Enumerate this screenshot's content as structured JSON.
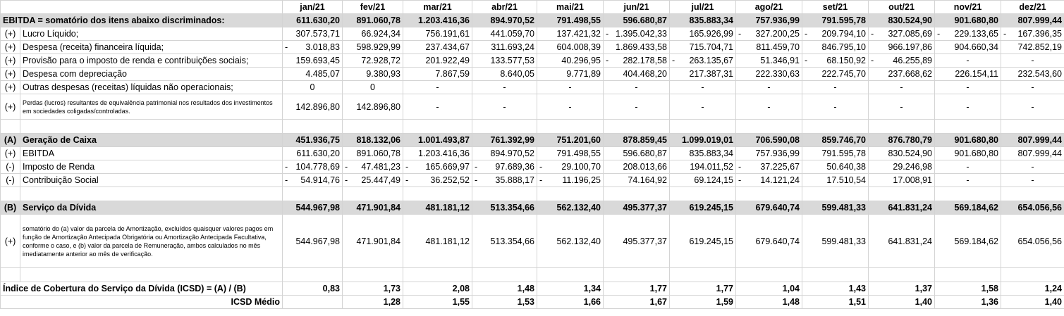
{
  "months": [
    "jan/21",
    "fev/21",
    "mar/21",
    "abr/21",
    "mai/21",
    "jun/21",
    "jul/21",
    "ago/21",
    "set/21",
    "out/21",
    "nov/21",
    "dez/21"
  ],
  "ebitda_header": {
    "label": "EBITDA = somatório dos itens abaixo discriminados:",
    "values": [
      "611.630,20",
      "891.060,78",
      "1.203.416,36",
      "894.970,52",
      "791.498,55",
      "596.680,87",
      "835.883,34",
      "757.936,99",
      "791.595,78",
      "830.524,90",
      "901.680,80",
      "807.999,44"
    ]
  },
  "ebitda_items": [
    {
      "sign": "(+)",
      "label": "Lucro Líquido;",
      "values": [
        "307.573,71",
        "66.924,34",
        "756.191,61",
        "441.059,70",
        "137.421,32",
        "-1.395.042,33",
        "165.926,99",
        "-327.200,25",
        "-209.794,10",
        "-327.085,69",
        "-229.133,65",
        "-167.396,35"
      ]
    },
    {
      "sign": "(+)",
      "label": "Despesa (receita) financeira líquida;",
      "values": [
        "-3.018,83",
        "598.929,99",
        "237.434,67",
        "311.693,24",
        "604.008,39",
        "1.869.433,58",
        "715.704,71",
        "811.459,70",
        "846.795,10",
        "966.197,86",
        "904.660,34",
        "742.852,19"
      ]
    },
    {
      "sign": "(+)",
      "label": "Provisão para o imposto de renda e contribuições sociais;",
      "values": [
        "159.693,45",
        "72.928,72",
        "201.922,49",
        "133.577,53",
        "40.296,95",
        "-282.178,58",
        "-263.135,67",
        "51.346,91",
        "-68.150,92",
        "-46.255,89",
        "-",
        "-"
      ]
    },
    {
      "sign": "(+)",
      "label": "Despesa com depreciação",
      "values": [
        "4.485,07",
        "9.380,93",
        "7.867,59",
        "8.640,05",
        "9.771,89",
        "404.468,20",
        "217.387,31",
        "222.330,63",
        "222.745,70",
        "237.668,62",
        "226.154,11",
        "232.543,60"
      ]
    },
    {
      "sign": "(+)",
      "label": "Outras despesas (receitas) líquidas não operacionais;",
      "values": [
        "0",
        "0",
        "-",
        "-",
        "-",
        "-",
        "-",
        "-",
        "-",
        "-",
        "-",
        "-"
      ]
    }
  ],
  "equity_item": {
    "sign": "(+)",
    "label": "Perdas (lucros) resultantes de equivalência patrimonial nos resultados dos investimentos em sociedades coligadas/controladas.",
    "values": [
      "142.896,80",
      "142.896,80",
      "-",
      "-",
      "-",
      "-",
      "-",
      "-",
      "-",
      "-",
      "-",
      "-"
    ]
  },
  "geracao_caixa": {
    "sign": "(A)",
    "label": "Geração de Caixa",
    "values": [
      "451.936,75",
      "818.132,06",
      "1.001.493,87",
      "761.392,99",
      "751.201,60",
      "878.859,45",
      "1.099.019,01",
      "706.590,08",
      "859.746,70",
      "876.780,79",
      "901.680,80",
      "807.999,44"
    ]
  },
  "caixa_items": [
    {
      "sign": "(+)",
      "label": "EBITDA",
      "values": [
        "611.630,20",
        "891.060,78",
        "1.203.416,36",
        "894.970,52",
        "791.498,55",
        "596.680,87",
        "835.883,34",
        "757.936,99",
        "791.595,78",
        "830.524,90",
        "901.680,80",
        "807.999,44"
      ]
    },
    {
      "sign": "(-)",
      "label": "Imposto de Renda",
      "values": [
        "-104.778,69",
        "-47.481,23",
        "-165.669,97",
        "-97.689,36",
        "-29.100,70",
        "208.013,66",
        "194.011,52",
        "-37.225,67",
        "50.640,38",
        "29.246,98",
        "-",
        "-"
      ]
    },
    {
      "sign": "(-)",
      "label": "Contribuição Social",
      "values": [
        "-54.914,76",
        "-25.447,49",
        "-36.252,52",
        "-35.888,17",
        "-11.196,25",
        "74.164,92",
        "69.124,15",
        "-14.121,24",
        "17.510,54",
        "17.008,91",
        "-",
        "-"
      ]
    }
  ],
  "servico_divida": {
    "sign": "(B)",
    "label": "Serviço da Dívida",
    "values": [
      "544.967,98",
      "471.901,84",
      "481.181,12",
      "513.354,66",
      "562.132,40",
      "495.377,37",
      "619.245,15",
      "679.640,74",
      "599.481,33",
      "641.831,24",
      "569.184,62",
      "654.056,56"
    ]
  },
  "amortizacao_item": {
    "sign": "(+)",
    "label": "somatório do (a) valor da parcela de Amortização, excluídos quaisquer valores pagos em função de Amortização Antecipada Obrigatória ou Amortização Antecipada Facultativa, conforme o caso, e (b) valor da parcela de Remuneração, ambos calculados no mês imediatamente anterior ao mês de verificação.",
    "values": [
      "544.967,98",
      "471.901,84",
      "481.181,12",
      "513.354,66",
      "562.132,40",
      "495.377,37",
      "619.245,15",
      "679.640,74",
      "599.481,33",
      "641.831,24",
      "569.184,62",
      "654.056,56"
    ]
  },
  "icsd": {
    "label": "Índice de Cobertura do Serviço da Dívida (ICSD) = (A) / (B)",
    "values": [
      "0,83",
      "1,73",
      "2,08",
      "1,48",
      "1,34",
      "1,77",
      "1,77",
      "1,04",
      "1,43",
      "1,37",
      "1,58",
      "1,24"
    ]
  },
  "icsd_medio": {
    "label": "ICSD Médio",
    "values": [
      "",
      "1,28",
      "1,55",
      "1,53",
      "1,66",
      "1,67",
      "1,59",
      "1,48",
      "1,51",
      "1,40",
      "1,36",
      "1,40"
    ]
  }
}
